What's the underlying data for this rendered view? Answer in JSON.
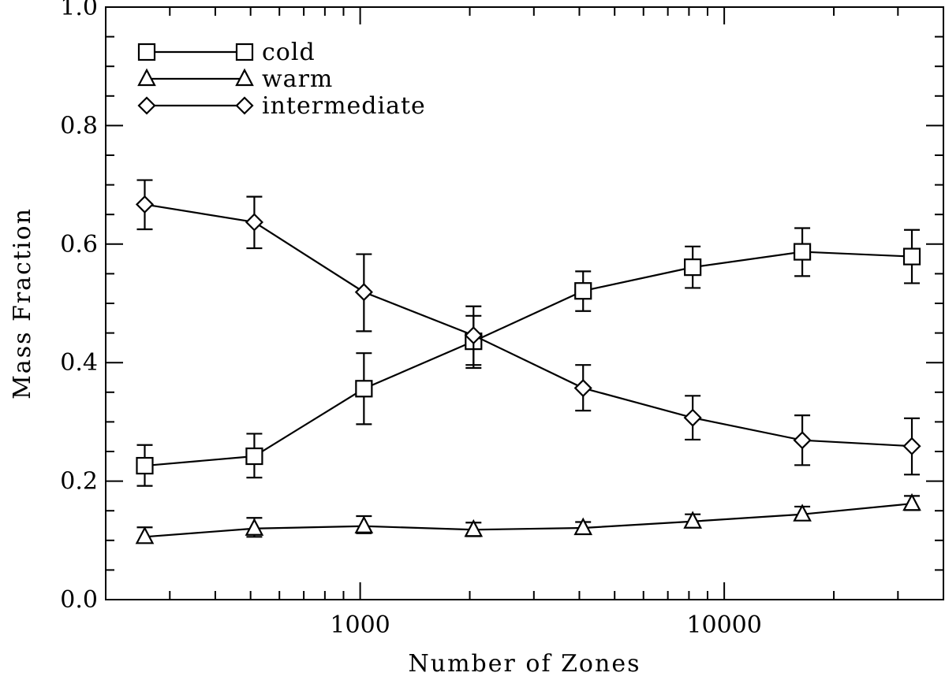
{
  "chart_data": {
    "type": "line",
    "title": "",
    "xlabel": "Number of Zones",
    "ylabel": "Mass Fraction",
    "xscale": "log",
    "xlim": [
      200,
      40000
    ],
    "ylim": [
      0.0,
      1.0
    ],
    "x": [
      256,
      512,
      1024,
      2048,
      4096,
      8192,
      16384,
      32768
    ],
    "x_tick_labels": [
      {
        "value": 1000,
        "label": "1000"
      },
      {
        "value": 10000,
        "label": "10000"
      }
    ],
    "y_ticks": [
      {
        "value": 0.0,
        "label": "0.0"
      },
      {
        "value": 0.2,
        "label": "0.2"
      },
      {
        "value": 0.4,
        "label": "0.4"
      },
      {
        "value": 0.6,
        "label": "0.6"
      },
      {
        "value": 0.8,
        "label": "0.8"
      },
      {
        "value": 1.0,
        "label": "1.0"
      }
    ],
    "legend_position": "top-left",
    "grid": false,
    "series": [
      {
        "name": "cold",
        "marker": "square",
        "values": [
          0.226,
          0.242,
          0.356,
          0.436,
          0.521,
          0.561,
          0.587,
          0.579
        ],
        "err_low": [
          0.192,
          0.206,
          0.296,
          0.391,
          0.487,
          0.526,
          0.546,
          0.534
        ],
        "err_high": [
          0.261,
          0.28,
          0.416,
          0.479,
          0.554,
          0.596,
          0.627,
          0.624
        ]
      },
      {
        "name": "warm",
        "marker": "triangle",
        "values": [
          0.106,
          0.12,
          0.124,
          0.118,
          0.121,
          0.132,
          0.144,
          0.162
        ],
        "err_low": [
          0.096,
          0.106,
          0.112,
          0.107,
          0.112,
          0.122,
          0.134,
          0.151
        ],
        "err_high": [
          0.122,
          0.138,
          0.141,
          0.13,
          0.131,
          0.144,
          0.157,
          0.175
        ]
      },
      {
        "name": "intermediate",
        "marker": "diamond",
        "values": [
          0.667,
          0.637,
          0.519,
          0.446,
          0.357,
          0.307,
          0.269,
          0.259
        ],
        "err_low": [
          0.625,
          0.593,
          0.453,
          0.396,
          0.319,
          0.27,
          0.227,
          0.211
        ],
        "err_high": [
          0.708,
          0.68,
          0.583,
          0.495,
          0.396,
          0.344,
          0.311,
          0.306
        ]
      }
    ]
  }
}
